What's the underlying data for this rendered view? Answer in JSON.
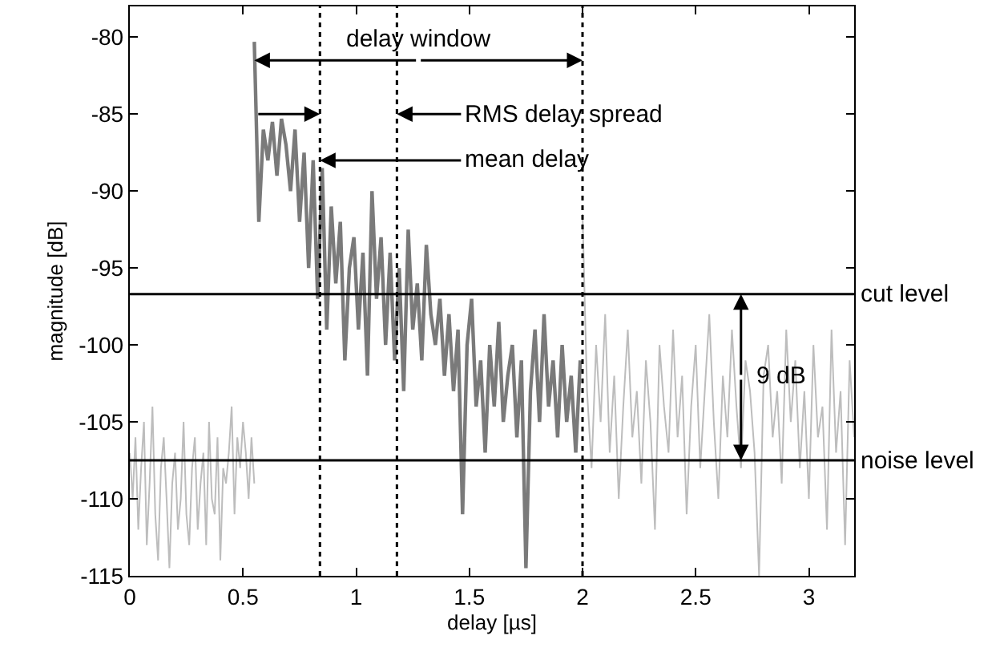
{
  "chart_data": {
    "type": "line",
    "xlabel": "delay [µs]",
    "ylabel": "magnitude [dB]",
    "xlim": [
      0,
      3.2
    ],
    "xticks": [
      0,
      0.5,
      1,
      1.5,
      2,
      2.5,
      3
    ],
    "ylim": [
      -115,
      -78
    ],
    "yticks": [
      -115,
      -110,
      -105,
      -100,
      -95,
      -90,
      -85,
      -80
    ],
    "marker": "none",
    "line_style": "solid",
    "series": [
      {
        "color": "#bdbdbd",
        "x": [
          0,
          0.0125,
          0.025,
          0.0375,
          0.05,
          0.0625,
          0.075,
          0.0875,
          0.1,
          0.1125,
          0.125,
          0.1375,
          0.15,
          0.1625,
          0.175,
          0.1875,
          0.2,
          0.2125,
          0.225,
          0.2375,
          0.25,
          0.2625,
          0.275,
          0.2875,
          0.3,
          0.3125,
          0.325,
          0.3375,
          0.35,
          0.3625,
          0.375,
          0.3875,
          0.4,
          0.4125,
          0.425,
          0.4375,
          0.45,
          0.4625,
          0.475,
          0.4875,
          0.5,
          0.5125,
          0.525,
          0.5375,
          0.55
        ],
        "values": [
          -107,
          -110,
          -106,
          -112,
          -108,
          -105,
          -113,
          -109,
          -104,
          -111,
          -114,
          -108,
          -106,
          -110,
          -114.5,
          -109,
          -107,
          -112,
          -110,
          -105,
          -111,
          -113,
          -108,
          -106,
          -112,
          -109,
          -107,
          -113,
          -105,
          -110,
          -111,
          -106,
          -114,
          -108,
          -109,
          -107,
          -104,
          -111,
          -106,
          -108,
          -105,
          -107,
          -110,
          -106,
          -109
        ]
      },
      {
        "color": "#7a7a7a",
        "x": [
          0.55,
          0.57,
          0.59,
          0.61,
          0.63,
          0.65,
          0.67,
          0.69,
          0.71,
          0.73,
          0.75,
          0.77,
          0.79,
          0.81,
          0.83,
          0.85,
          0.87,
          0.89,
          0.91,
          0.93,
          0.95,
          0.97,
          0.99,
          1.01,
          1.03,
          1.05,
          1.07,
          1.09,
          1.11,
          1.13,
          1.15,
          1.17,
          1.19,
          1.21,
          1.23,
          1.25,
          1.27,
          1.29,
          1.31,
          1.33,
          1.35,
          1.37,
          1.39,
          1.41,
          1.43,
          1.45,
          1.47,
          1.49,
          1.51,
          1.53,
          1.55,
          1.57,
          1.59,
          1.61,
          1.63,
          1.65,
          1.67,
          1.69,
          1.71,
          1.73,
          1.75,
          1.77,
          1.79,
          1.81,
          1.83,
          1.85,
          1.87,
          1.89,
          1.91,
          1.93,
          1.95,
          1.97,
          1.99
        ],
        "values": [
          -80.3,
          -92,
          -86,
          -88,
          -85.5,
          -89,
          -85.3,
          -87,
          -90,
          -86,
          -92,
          -87.5,
          -95,
          -88,
          -97,
          -88.5,
          -99,
          -91,
          -96,
          -92,
          -101,
          -95,
          -93,
          -99,
          -94,
          -102,
          -90,
          -97,
          -93,
          -100,
          -94,
          -101,
          -95,
          -103,
          -92.5,
          -99,
          -96,
          -101,
          -93.5,
          -98,
          -100,
          -97,
          -102,
          -98,
          -103,
          -99,
          -111,
          -100,
          -97,
          -104,
          -101,
          -107,
          -100,
          -104,
          -98.5,
          -105,
          -102,
          -100,
          -106,
          -101,
          -114.5,
          -103,
          -99,
          -105,
          -98,
          -104,
          -101,
          -106,
          -100,
          -105,
          -102,
          -107,
          -101
        ]
      },
      {
        "color": "#bdbdbd",
        "x": [
          2.0,
          2.02,
          2.04,
          2.06,
          2.08,
          2.1,
          2.12,
          2.14,
          2.16,
          2.18,
          2.2,
          2.22,
          2.24,
          2.26,
          2.28,
          2.3,
          2.32,
          2.34,
          2.36,
          2.38,
          2.4,
          2.42,
          2.44,
          2.46,
          2.48,
          2.5,
          2.52,
          2.54,
          2.56,
          2.58,
          2.6,
          2.62,
          2.64,
          2.66,
          2.68,
          2.7,
          2.72,
          2.74,
          2.76,
          2.78,
          2.8,
          2.82,
          2.84,
          2.86,
          2.88,
          2.9,
          2.92,
          2.94,
          2.96,
          2.98,
          3.0,
          3.02,
          3.04,
          3.06,
          3.08,
          3.1,
          3.12,
          3.14,
          3.16,
          3.18,
          3.2
        ],
        "values": [
          -91.5,
          -103,
          -108,
          -100,
          -105,
          -98,
          -107,
          -102,
          -110,
          -104,
          -99,
          -106,
          -103,
          -109,
          -101,
          -105,
          -112,
          -100,
          -104,
          -107,
          -99,
          -106,
          -102,
          -111,
          -104,
          -100,
          -108,
          -103,
          -98,
          -105,
          -110,
          -102,
          -106,
          -99,
          -104,
          -108,
          -101,
          -103,
          -107,
          -115,
          -102,
          -100,
          -106,
          -103,
          -109,
          -99,
          -105,
          -101,
          -108,
          -103,
          -110,
          -100,
          -106,
          -104,
          -112,
          -99,
          -107,
          -103,
          -113,
          -101,
          -106
        ]
      }
    ],
    "ref_lines": [
      {
        "axis": "y",
        "value": -96.7,
        "label": "cut level",
        "color": "#000000",
        "line_style": "solid"
      },
      {
        "axis": "y",
        "value": -107.5,
        "label": "noise level",
        "color": "#000000",
        "line_style": "solid"
      },
      {
        "axis": "x",
        "value": 0.84,
        "color": "#000000",
        "line_style": "dotted"
      },
      {
        "axis": "x",
        "value": 1.18,
        "color": "#000000",
        "line_style": "dotted"
      },
      {
        "axis": "x",
        "value": 2.0,
        "color": "#000000",
        "line_style": "dotted"
      }
    ],
    "annotations": [
      {
        "text": "delay window",
        "x": 0.55,
        "y": -81.5
      },
      {
        "text": "RMS delay spread",
        "x": 1.18,
        "y": -85
      },
      {
        "text": "mean delay",
        "x": 0.84,
        "y": -88
      },
      {
        "text": "9 dB",
        "x": 2.7,
        "y": -102
      }
    ]
  }
}
